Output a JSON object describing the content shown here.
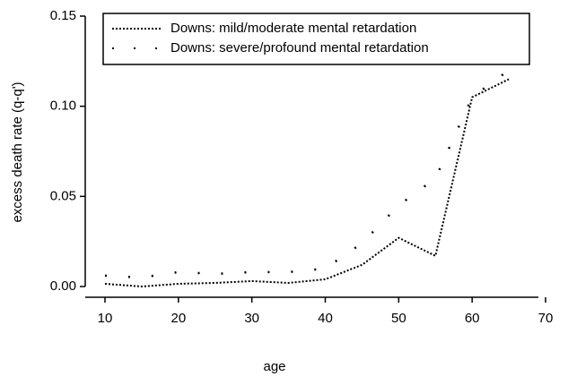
{
  "chart_data": {
    "type": "line",
    "x_label": "age",
    "y_label": "excess death rate (q-q')",
    "x": [
      10,
      15,
      20,
      25,
      30,
      35,
      40,
      45,
      50,
      55,
      60,
      65
    ],
    "series": [
      {
        "name": "Downs: mild/moderate mental retardation",
        "color": "#000000",
        "dash": "dense",
        "values": [
          0.0015,
          0.0,
          0.0015,
          0.002,
          0.003,
          0.002,
          0.004,
          0.012,
          0.027,
          0.017,
          0.105,
          0.115
        ]
      },
      {
        "name": "Downs: severe/profound mental retardation",
        "color": "#000000",
        "dash": "sparse",
        "values": [
          0.006,
          0.005,
          0.008,
          0.007,
          0.008,
          0.008,
          0.01,
          0.024,
          0.045,
          0.06,
          0.105,
          0.12
        ]
      }
    ],
    "xlim": [
      10,
      70
    ],
    "xticks": [
      10,
      20,
      30,
      40,
      50,
      60,
      70
    ],
    "ylim": [
      0,
      0.15
    ],
    "yticks": [
      {
        "value": 0,
        "label": "0.00"
      },
      {
        "value": 0.05,
        "label": "0.05"
      },
      {
        "value": 0.1,
        "label": "0.10"
      },
      {
        "value": 0.15,
        "label": "0.15"
      }
    ],
    "legend": "top"
  }
}
